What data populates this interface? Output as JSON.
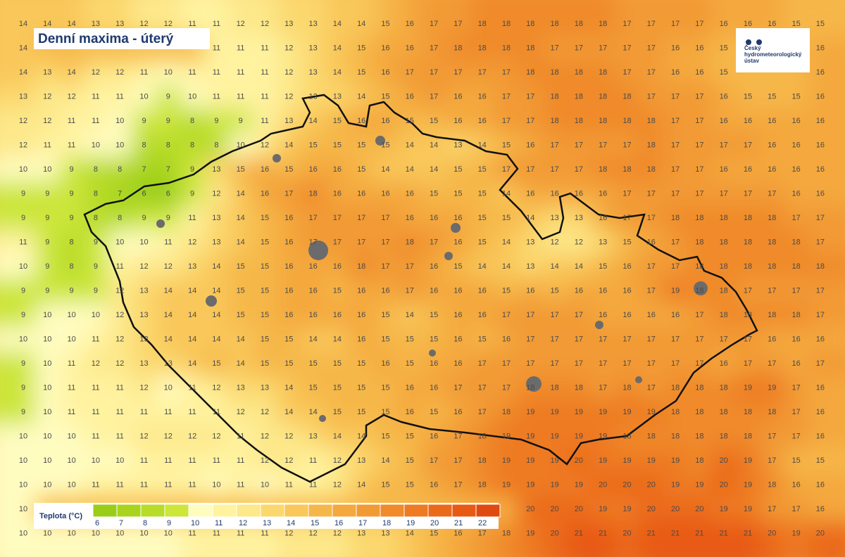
{
  "title": "Denní maxima - úterý",
  "logo": {
    "lines": [
      "Český",
      "hydrometeorologický",
      "ústav"
    ]
  },
  "grid": {
    "rows": [
      [
        14,
        14,
        14,
        13,
        13,
        12,
        12,
        11,
        11,
        12,
        12,
        13,
        13,
        14,
        14,
        15,
        16,
        17,
        17,
        18,
        18,
        18,
        18,
        18,
        18,
        17,
        17,
        17,
        17,
        16,
        16,
        16,
        15,
        15
      ],
      [
        14,
        null,
        null,
        null,
        null,
        null,
        null,
        null,
        11,
        11,
        11,
        12,
        13,
        14,
        15,
        16,
        16,
        17,
        18,
        18,
        18,
        18,
        17,
        17,
        17,
        17,
        17,
        16,
        16,
        15,
        null,
        null,
        null,
        16
      ],
      [
        14,
        13,
        14,
        12,
        12,
        11,
        10,
        11,
        11,
        11,
        11,
        12,
        13,
        14,
        15,
        16,
        17,
        17,
        17,
        17,
        17,
        18,
        18,
        18,
        18,
        17,
        17,
        16,
        16,
        15,
        null,
        null,
        null,
        16
      ],
      [
        13,
        12,
        12,
        11,
        11,
        10,
        9,
        10,
        11,
        11,
        11,
        12,
        13,
        13,
        14,
        15,
        16,
        17,
        16,
        16,
        17,
        17,
        18,
        18,
        18,
        18,
        17,
        17,
        17,
        16,
        15,
        15,
        15,
        16
      ],
      [
        12,
        12,
        11,
        11,
        10,
        9,
        9,
        8,
        9,
        9,
        11,
        13,
        14,
        15,
        16,
        16,
        15,
        15,
        16,
        16,
        17,
        17,
        18,
        18,
        18,
        18,
        18,
        17,
        17,
        16,
        16,
        16,
        16,
        16
      ],
      [
        12,
        11,
        11,
        10,
        10,
        8,
        8,
        8,
        8,
        10,
        12,
        14,
        15,
        15,
        15,
        15,
        14,
        14,
        13,
        14,
        15,
        16,
        17,
        17,
        17,
        17,
        18,
        17,
        17,
        17,
        17,
        16,
        16,
        16
      ],
      [
        10,
        10,
        9,
        8,
        8,
        7,
        7,
        9,
        13,
        15,
        16,
        15,
        16,
        16,
        15,
        14,
        14,
        14,
        15,
        15,
        17,
        17,
        17,
        17,
        18,
        18,
        18,
        17,
        17,
        16,
        16,
        16,
        16,
        16
      ],
      [
        9,
        9,
        9,
        8,
        7,
        6,
        6,
        9,
        12,
        14,
        16,
        17,
        18,
        16,
        16,
        16,
        16,
        15,
        15,
        15,
        14,
        16,
        16,
        16,
        16,
        17,
        17,
        17,
        17,
        17,
        17,
        17,
        16,
        16
      ],
      [
        9,
        9,
        9,
        8,
        8,
        9,
        9,
        11,
        13,
        14,
        15,
        16,
        17,
        17,
        17,
        17,
        16,
        16,
        16,
        15,
        15,
        14,
        13,
        13,
        16,
        17,
        17,
        18,
        18,
        18,
        18,
        18,
        17,
        17
      ],
      [
        11,
        9,
        8,
        9,
        10,
        10,
        11,
        12,
        13,
        14,
        15,
        16,
        17,
        17,
        17,
        17,
        18,
        17,
        16,
        15,
        14,
        13,
        12,
        12,
        13,
        15,
        16,
        17,
        18,
        18,
        18,
        18,
        18,
        17
      ],
      [
        10,
        9,
        8,
        9,
        11,
        12,
        12,
        13,
        14,
        15,
        15,
        16,
        16,
        16,
        18,
        17,
        17,
        16,
        15,
        14,
        14,
        13,
        14,
        14,
        15,
        16,
        17,
        17,
        18,
        18,
        18,
        18,
        18,
        18
      ],
      [
        9,
        9,
        9,
        9,
        12,
        13,
        14,
        14,
        14,
        15,
        15,
        16,
        16,
        15,
        16,
        16,
        17,
        16,
        16,
        16,
        15,
        16,
        15,
        16,
        16,
        16,
        17,
        19,
        18,
        18,
        17,
        17,
        17,
        17
      ],
      [
        9,
        10,
        10,
        10,
        12,
        13,
        14,
        14,
        14,
        15,
        15,
        16,
        16,
        16,
        16,
        15,
        14,
        15,
        16,
        16,
        17,
        17,
        17,
        17,
        16,
        16,
        16,
        16,
        17,
        18,
        18,
        18,
        18,
        17
      ],
      [
        10,
        10,
        10,
        11,
        12,
        13,
        14,
        14,
        14,
        14,
        15,
        15,
        14,
        14,
        16,
        15,
        15,
        15,
        16,
        15,
        16,
        17,
        17,
        17,
        17,
        17,
        17,
        17,
        17,
        17,
        17,
        16,
        16,
        16
      ],
      [
        9,
        10,
        11,
        12,
        12,
        13,
        13,
        14,
        15,
        14,
        15,
        15,
        15,
        15,
        15,
        16,
        15,
        16,
        16,
        17,
        17,
        17,
        17,
        17,
        17,
        17,
        17,
        17,
        17,
        16,
        17,
        17,
        16,
        17
      ],
      [
        9,
        10,
        11,
        11,
        11,
        12,
        10,
        11,
        12,
        13,
        13,
        14,
        15,
        15,
        15,
        15,
        16,
        16,
        17,
        17,
        17,
        18,
        18,
        18,
        17,
        18,
        17,
        18,
        18,
        18,
        19,
        19,
        17,
        16
      ],
      [
        9,
        10,
        11,
        11,
        11,
        11,
        11,
        11,
        11,
        12,
        12,
        14,
        14,
        15,
        15,
        15,
        16,
        15,
        16,
        17,
        18,
        19,
        19,
        19,
        19,
        19,
        19,
        18,
        18,
        18,
        18,
        18,
        17,
        16
      ],
      [
        10,
        10,
        10,
        11,
        11,
        12,
        12,
        12,
        12,
        11,
        12,
        12,
        13,
        14,
        14,
        15,
        15,
        16,
        17,
        18,
        19,
        19,
        19,
        19,
        19,
        18,
        18,
        18,
        18,
        18,
        18,
        17,
        17,
        16
      ],
      [
        10,
        10,
        10,
        10,
        10,
        11,
        11,
        11,
        11,
        11,
        12,
        12,
        11,
        12,
        13,
        14,
        15,
        17,
        17,
        18,
        19,
        19,
        19,
        20,
        19,
        19,
        19,
        19,
        18,
        20,
        19,
        17,
        15,
        15
      ],
      [
        10,
        10,
        10,
        11,
        11,
        11,
        11,
        11,
        10,
        11,
        10,
        11,
        11,
        12,
        14,
        15,
        15,
        16,
        17,
        18,
        19,
        19,
        19,
        19,
        20,
        20,
        20,
        19,
        19,
        20,
        19,
        18,
        16,
        16
      ],
      [
        10,
        null,
        null,
        null,
        null,
        null,
        null,
        null,
        null,
        null,
        null,
        null,
        null,
        null,
        null,
        null,
        null,
        null,
        null,
        null,
        null,
        20,
        20,
        20,
        19,
        19,
        20,
        20,
        20,
        19,
        19,
        17,
        17,
        16
      ],
      [
        10,
        10,
        10,
        10,
        10,
        10,
        10,
        11,
        11,
        11,
        11,
        12,
        12,
        12,
        13,
        13,
        14,
        15,
        16,
        17,
        18,
        19,
        20,
        21,
        21,
        20,
        21,
        21,
        21,
        21,
        21,
        20,
        19,
        20
      ]
    ]
  },
  "legend": {
    "label": "Teplota (°C)",
    "ticks": [
      6,
      7,
      8,
      9,
      10,
      11,
      12,
      13,
      14,
      15,
      16,
      17,
      18,
      19,
      20,
      21,
      22
    ],
    "colors": [
      "#9acd1a",
      "#a8d41e",
      "#b8dc2a",
      "#cce63a",
      "#fffcc0",
      "#fff3a0",
      "#fde88a",
      "#fbd86e",
      "#f9c75a",
      "#f6b74a",
      "#f4a83e",
      "#f29a34",
      "#f08a2a",
      "#ee7a22",
      "#eb6a1a",
      "#e85a14",
      "#e04a10"
    ]
  }
}
